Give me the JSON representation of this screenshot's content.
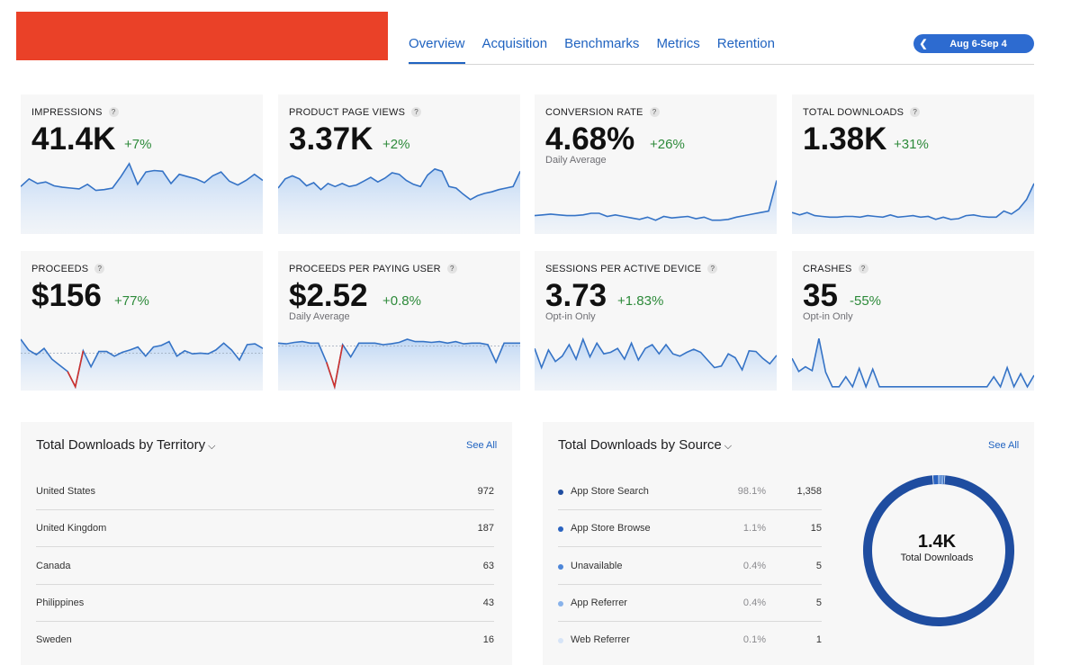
{
  "colors": {
    "accent": "#2063c0",
    "positive": "#2d8a3a",
    "negative": "#d2322b",
    "redacted": "#ea4128",
    "spark_line": "#3573c6"
  },
  "header": {
    "tabs": [
      {
        "label": "Overview",
        "active": true
      },
      {
        "label": "Acquisition",
        "active": false
      },
      {
        "label": "Benchmarks",
        "active": false
      },
      {
        "label": "Metrics",
        "active": false
      },
      {
        "label": "Retention",
        "active": false
      }
    ],
    "date_range": "Aug 6-Sep 4",
    "prev_icon": "chevron-left-icon"
  },
  "metrics": [
    {
      "label": "IMPRESSIONS",
      "value": "41.4K",
      "delta": "+7%",
      "sub": "",
      "q": "?",
      "spark": [
        62,
        72,
        66,
        68,
        63,
        61,
        60,
        59,
        65,
        57,
        58,
        60,
        75,
        92,
        65,
        81,
        83,
        82,
        66,
        78,
        75,
        72,
        67,
        76,
        81,
        69,
        64,
        70,
        78,
        70
      ],
      "dips": []
    },
    {
      "label": "PRODUCT PAGE VIEWS",
      "value": "3.37K",
      "delta": "+2%",
      "sub": "",
      "q": "?",
      "spark": [
        60,
        72,
        76,
        72,
        63,
        67,
        58,
        66,
        62,
        66,
        62,
        64,
        69,
        74,
        68,
        73,
        80,
        78,
        70,
        65,
        62,
        77,
        85,
        82,
        62,
        60,
        52,
        45,
        50,
        53,
        55,
        58,
        60,
        62,
        82
      ],
      "dips": []
    },
    {
      "label": "CONVERSION RATE",
      "value": "4.68%",
      "delta": "+26%",
      "sub": "Daily Average",
      "q": "?",
      "spark": [
        24,
        25,
        26,
        25,
        24,
        24,
        25,
        27,
        27,
        23,
        25,
        23,
        21,
        19,
        22,
        18,
        23,
        21,
        22,
        23,
        20,
        22,
        18,
        18,
        19,
        22,
        24,
        26,
        28,
        30,
        70
      ],
      "dips": []
    },
    {
      "label": "TOTAL DOWNLOADS",
      "value": "1.38K",
      "delta": "+31%",
      "sub": "",
      "q": "?",
      "spark": [
        28,
        25,
        28,
        24,
        23,
        22,
        22,
        23,
        23,
        22,
        24,
        23,
        22,
        25,
        22,
        23,
        24,
        22,
        23,
        19,
        22,
        19,
        20,
        24,
        25,
        23,
        22,
        22,
        30,
        26,
        33,
        45,
        66
      ],
      "dips": []
    },
    {
      "label": "PROCEEDS",
      "value": "$156",
      "delta": "+77%",
      "sub": "",
      "q": "?",
      "spark": [
        67,
        53,
        47,
        55,
        41,
        33,
        25,
        5,
        52,
        31,
        51,
        51,
        45,
        50,
        53,
        57,
        45,
        57,
        59,
        64,
        45,
        52,
        48,
        49,
        48,
        53,
        62,
        53,
        40,
        60,
        61,
        55
      ],
      "dips": [
        7
      ]
    },
    {
      "label": "PROCEEDS PER PAYING USER",
      "value": "$2.52",
      "delta": "+0.8%",
      "sub": "Daily Average",
      "q": "?",
      "spark": [
        62,
        61,
        63,
        64,
        62,
        62,
        37,
        5,
        60,
        44,
        62,
        62,
        62,
        60,
        61,
        63,
        67,
        64,
        64,
        63,
        64,
        62,
        64,
        61,
        62,
        62,
        60,
        37,
        62,
        62,
        62
      ],
      "dips": [
        7
      ]
    },
    {
      "label": "SESSIONS PER ACTIVE DEVICE",
      "value": "3.73",
      "delta": "+1.83%",
      "sub": "Opt-in Only",
      "q": "?",
      "spark": [
        55,
        30,
        53,
        38,
        45,
        60,
        41,
        67,
        44,
        62,
        48,
        50,
        55,
        41,
        62,
        40,
        55,
        60,
        48,
        60,
        48,
        45,
        50,
        54,
        50,
        40,
        30,
        32,
        48,
        43,
        27,
        52,
        51,
        42,
        35,
        46
      ],
      "dips": []
    },
    {
      "label": "CRASHES",
      "value": "35",
      "delta": "-55%",
      "sub": "Opt-in Only",
      "q": "?",
      "spark": [
        42,
        25,
        31,
        26,
        68,
        24,
        5,
        5,
        18,
        5,
        29,
        5,
        28,
        5,
        5,
        5,
        5,
        5,
        5,
        5,
        5,
        5,
        5,
        5,
        5,
        5,
        5,
        5,
        5,
        5,
        18,
        5,
        30,
        5,
        22,
        5,
        20
      ],
      "dips": []
    }
  ],
  "territory": {
    "title": "Total Downloads by Territory",
    "see_all": "See All",
    "rows": [
      {
        "name": "United States",
        "value": "972"
      },
      {
        "name": "United Kingdom",
        "value": "187"
      },
      {
        "name": "Canada",
        "value": "63"
      },
      {
        "name": "Philippines",
        "value": "43"
      },
      {
        "name": "Sweden",
        "value": "16"
      }
    ]
  },
  "source": {
    "title": "Total Downloads by Source",
    "see_all": "See All",
    "rows": [
      {
        "name": "App Store Search",
        "pct": "98.1%",
        "value": "1,358",
        "color": "#1f4da0",
        "share": 0.981
      },
      {
        "name": "App Store Browse",
        "pct": "1.1%",
        "value": "15",
        "color": "#2a63c0",
        "share": 0.011
      },
      {
        "name": "Unavailable",
        "pct": "0.4%",
        "value": "5",
        "color": "#4d86d8",
        "share": 0.004
      },
      {
        "name": "App Referrer",
        "pct": "0.4%",
        "value": "5",
        "color": "#88b2ea",
        "share": 0.004
      },
      {
        "name": "Web Referrer",
        "pct": "0.1%",
        "value": "1",
        "color": "#d6e4f7",
        "share": 0.001
      }
    ],
    "donut_value": "1.4K",
    "donut_label": "Total Downloads"
  }
}
